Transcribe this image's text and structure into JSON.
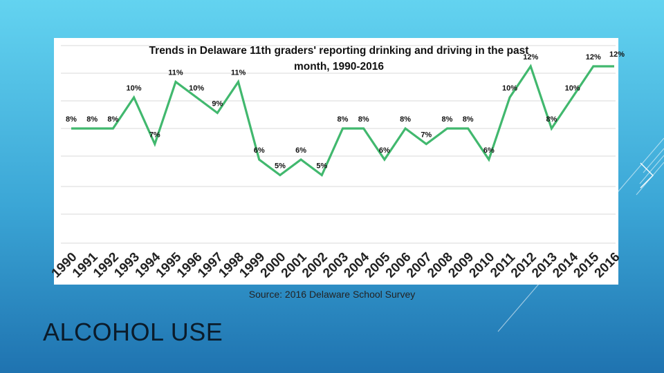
{
  "slide": {
    "section_title": "ALCOHOL USE",
    "source": "Source: 2016 Delaware School Survey",
    "accent_color": "#3cb371",
    "line_color": "#41b86e"
  },
  "chart_data": {
    "type": "line",
    "title": "Trends in Delaware 11th graders' reporting drinking and driving in the past month, 1990-2016",
    "title_lines": [
      "Trends in Delaware 11th graders' reporting drinking and driving in the past",
      "month, 1990-2016"
    ],
    "xlabel": "",
    "ylabel": "",
    "categories": [
      "1990",
      "1991",
      "1992",
      "1993",
      "1994",
      "1995",
      "1996",
      "1997",
      "1998",
      "1999",
      "2000",
      "2001",
      "2002",
      "2003",
      "2004",
      "2005",
      "2006",
      "2007",
      "2008",
      "2009",
      "2010",
      "2011",
      "2012",
      "2013",
      "2014",
      "2015",
      "2016"
    ],
    "values": [
      8,
      8,
      8,
      10,
      7,
      11,
      10,
      9,
      11,
      6,
      5,
      6,
      5,
      8,
      8,
      6,
      8,
      7,
      8,
      8,
      6,
      10,
      12,
      8,
      10,
      12,
      12
    ],
    "value_labels": [
      "8%",
      "8%",
      "8%",
      "10%",
      "7%",
      "11%",
      "10%",
      "9%",
      "11%",
      "6%",
      "5%",
      "6%",
      "5%",
      "8%",
      "8%",
      "6%",
      "8%",
      "7%",
      "8%",
      "8%",
      "6%",
      "10%",
      "12%",
      "8%",
      "10%",
      "12%",
      "12%"
    ],
    "ylim": [
      0,
      14
    ],
    "grid": true,
    "legend": "none"
  }
}
